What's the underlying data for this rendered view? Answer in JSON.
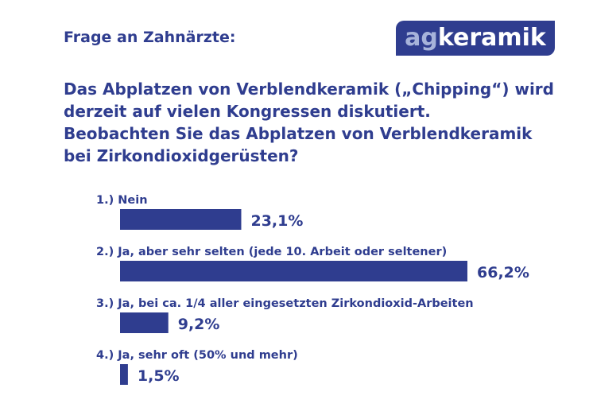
{
  "header": {
    "kicker": "Frage an Zahnärzte:",
    "logo_ag": "ag",
    "logo_brand": "keramik"
  },
  "question_lines": [
    "Das Abplatzen von Verblendkeramik („Chipping“) wird",
    "derzeit auf vielen Kongressen diskutiert.",
    "Beobachten Sie das Abplatzen von Verblendkeramik",
    "bei Zirkondioxidgerüsten?"
  ],
  "colors": {
    "primary": "#2f3d8f",
    "logo_ag": "#a7b3da"
  },
  "chart_data": {
    "type": "bar",
    "orientation": "horizontal",
    "categories": [
      "1.) Nein",
      "2.) Ja, aber sehr selten (jede 10. Arbeit oder seltener)",
      "3.) Ja, bei ca. 1/4 aller eingesetzten Zirkondioxid-Arbeiten",
      "4.) Ja, sehr oft (50% und mehr)"
    ],
    "values": [
      23.1,
      66.2,
      9.2,
      1.5
    ],
    "value_labels": [
      "23,1%",
      "66,2%",
      "9,2%",
      "1,5%"
    ],
    "unit": "%",
    "xlim": [
      0,
      66.2
    ],
    "grid": false,
    "legend": "none"
  }
}
